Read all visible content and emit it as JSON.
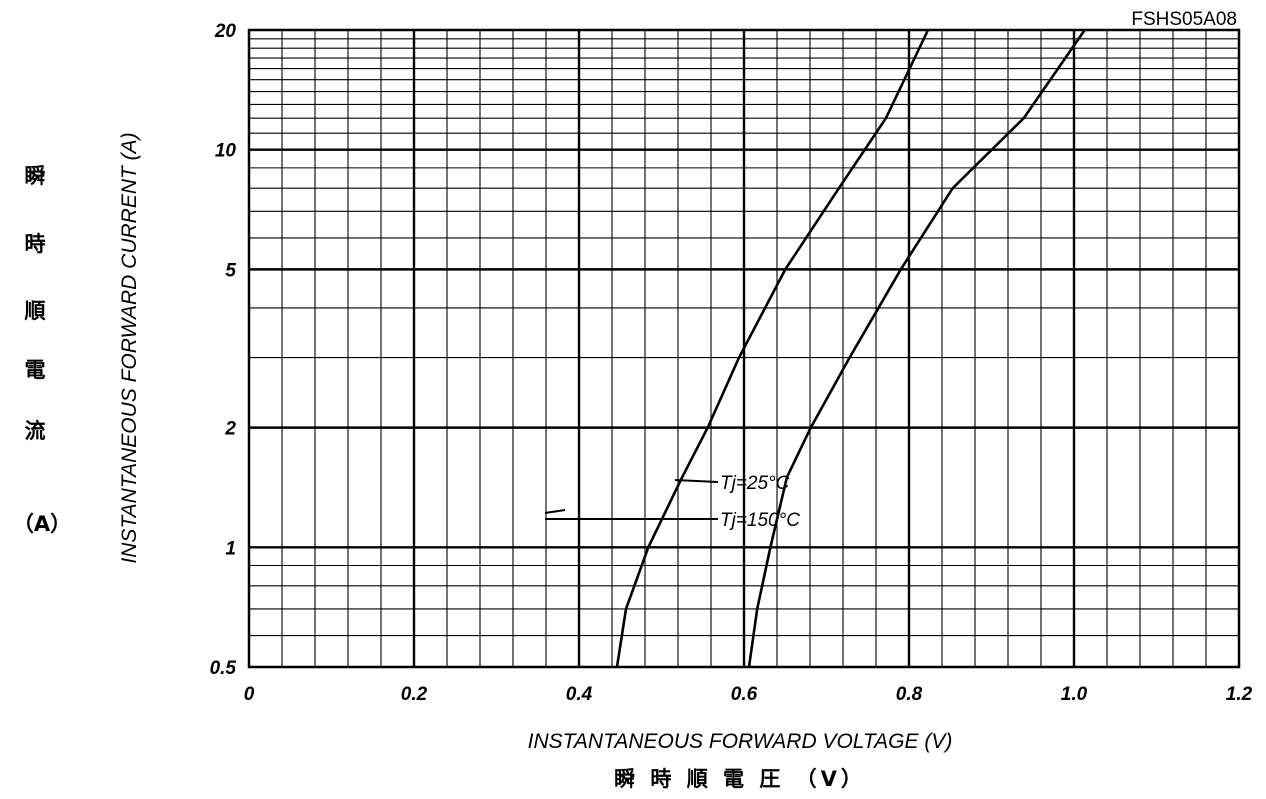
{
  "chart_data": {
    "type": "line",
    "figure_code": "FSHS05A08",
    "xlabel": "INSTANTANEOUS FORWARD VOLTAGE (V)",
    "xlabel_jp": "瞬 時 順 電 圧 （V）",
    "ylabel": "INSTANTANEOUS FORWARD CURRENT (A)",
    "ylabel_jp": [
      "瞬",
      "時",
      "順",
      "電",
      "流",
      "（A）"
    ],
    "xlim": [
      0,
      1.2
    ],
    "ylim": [
      0.5,
      20
    ],
    "y_scale": "log",
    "grid": true,
    "x_ticks": [
      "0",
      "0.2",
      "0.4",
      "0.6",
      "0.8",
      "1.0",
      "1.2"
    ],
    "y_ticks": [
      "0.5",
      "1",
      "2",
      "5",
      "10",
      "20"
    ],
    "series": [
      {
        "name": "Tj=25°C",
        "x": [
          0.606,
          0.616,
          0.632,
          0.652,
          0.681,
          0.728,
          0.79,
          0.853,
          0.939,
          1.013
        ],
        "y": [
          0.5,
          0.7,
          1.0,
          1.5,
          2.0,
          3.0,
          5.0,
          8.0,
          12.0,
          20.0
        ]
      },
      {
        "name": "Tj=150°C",
        "x": [
          0.446,
          0.457,
          0.484,
          0.525,
          0.556,
          0.594,
          0.65,
          0.715,
          0.772,
          0.823
        ],
        "y": [
          0.5,
          0.7,
          1.0,
          1.5,
          2.0,
          3.0,
          5.0,
          8.0,
          12.0,
          20.0
        ]
      }
    ]
  }
}
